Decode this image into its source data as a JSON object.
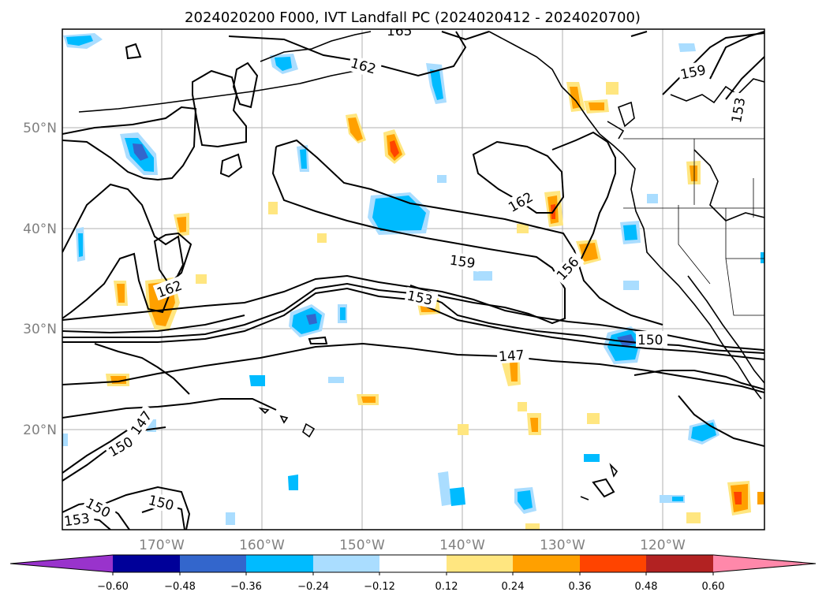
{
  "title": "2024020200 F000, IVT Landfall PC (2024020412 - 2024020700)",
  "lat_labels": [
    "50°N",
    "40°N",
    "30°N",
    "20°N"
  ],
  "lon_labels": [
    "170°W",
    "160°W",
    "150°W",
    "140°W",
    "130°W",
    "120°W"
  ],
  "contour_labels": [
    "165",
    "162",
    "162",
    "162",
    "159",
    "159",
    "156",
    "153",
    "153",
    "153",
    "150",
    "150",
    "150",
    "150",
    "147",
    "147"
  ],
  "colorbar": {
    "tick_labels": [
      "−0.60",
      "−0.48",
      "−0.36",
      "−0.24",
      "−0.12",
      "0.12",
      "0.24",
      "0.36",
      "0.48",
      "0.60"
    ],
    "colors": [
      "#9933cc",
      "#000099",
      "#3366cc",
      "#00bbff",
      "#aaddff",
      "#ffffff",
      "#ffe680",
      "#ffa000",
      "#ff4400",
      "#b22222",
      "#ff88aa"
    ]
  },
  "palette": {
    "blue_light": "#aaddff",
    "blue_mid": "#00bbff",
    "blue_dark": "#3366cc",
    "orange_light": "#ffe680",
    "orange_mid": "#ffa000",
    "orange_dark": "#ff4400"
  }
}
